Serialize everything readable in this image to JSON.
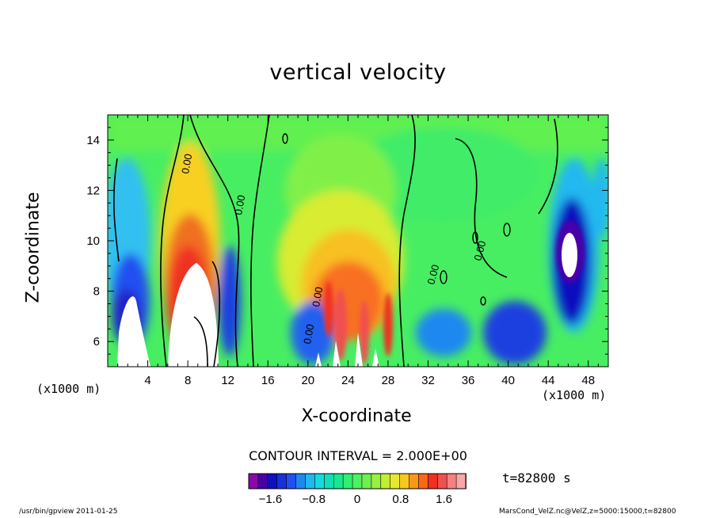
{
  "chart_data": {
    "type": "heatmap",
    "title": "vertical velocity",
    "xlabel": "X-coordinate",
    "ylabel": "Z-coordinate",
    "x_unit": "(x1000 m)",
    "y_unit": "(x1000 m)",
    "xlim": [
      0,
      50
    ],
    "ylim": [
      5,
      15
    ],
    "x_ticks": [
      "4",
      "8",
      "12",
      "16",
      "20",
      "24",
      "28",
      "32",
      "36",
      "40",
      "44",
      "48"
    ],
    "y_ticks": [
      "6",
      "8",
      "10",
      "12",
      "14"
    ],
    "contour_label": "0.00",
    "contour_interval": "CONTOUR INTERVAL = 2.000E+00",
    "time_label": "t=82800 s",
    "colorbar": {
      "tick_labels": [
        "-1.6",
        "-0.8",
        "0",
        "0.8",
        "1.6"
      ],
      "tick_values": [
        -1.6,
        -0.8,
        0,
        0.8,
        1.6
      ],
      "range": [
        -2.0,
        2.0
      ],
      "colors": [
        "#8a0aa8",
        "#4a00a8",
        "#1010c0",
        "#1a30d8",
        "#2050f0",
        "#1e88f0",
        "#20b8f0",
        "#18d8e0",
        "#10e0b8",
        "#18e890",
        "#30f070",
        "#50f060",
        "#70f050",
        "#98f040",
        "#c0f030",
        "#e8e830",
        "#f8c820",
        "#f89818",
        "#f86818",
        "#f03020",
        "#f05050",
        "#f88080",
        "#f8a8a8"
      ]
    },
    "features": [
      {
        "type": "positive",
        "x": 10,
        "z": 7.5,
        "desc": "strong updraft"
      },
      {
        "type": "positive",
        "x": 25,
        "z": 8.5,
        "desc": "updraft core"
      },
      {
        "type": "negative",
        "x": 46,
        "z": 9.5,
        "desc": "strong downdraft"
      },
      {
        "type": "negative",
        "x": 3,
        "z": 7.5,
        "desc": "downdraft"
      }
    ]
  },
  "footer": {
    "left": "/usr/bin/gpview  2011-01-25",
    "right": "MarsCond_VelZ.nc@VelZ,z=5000:15000,t=82800"
  }
}
